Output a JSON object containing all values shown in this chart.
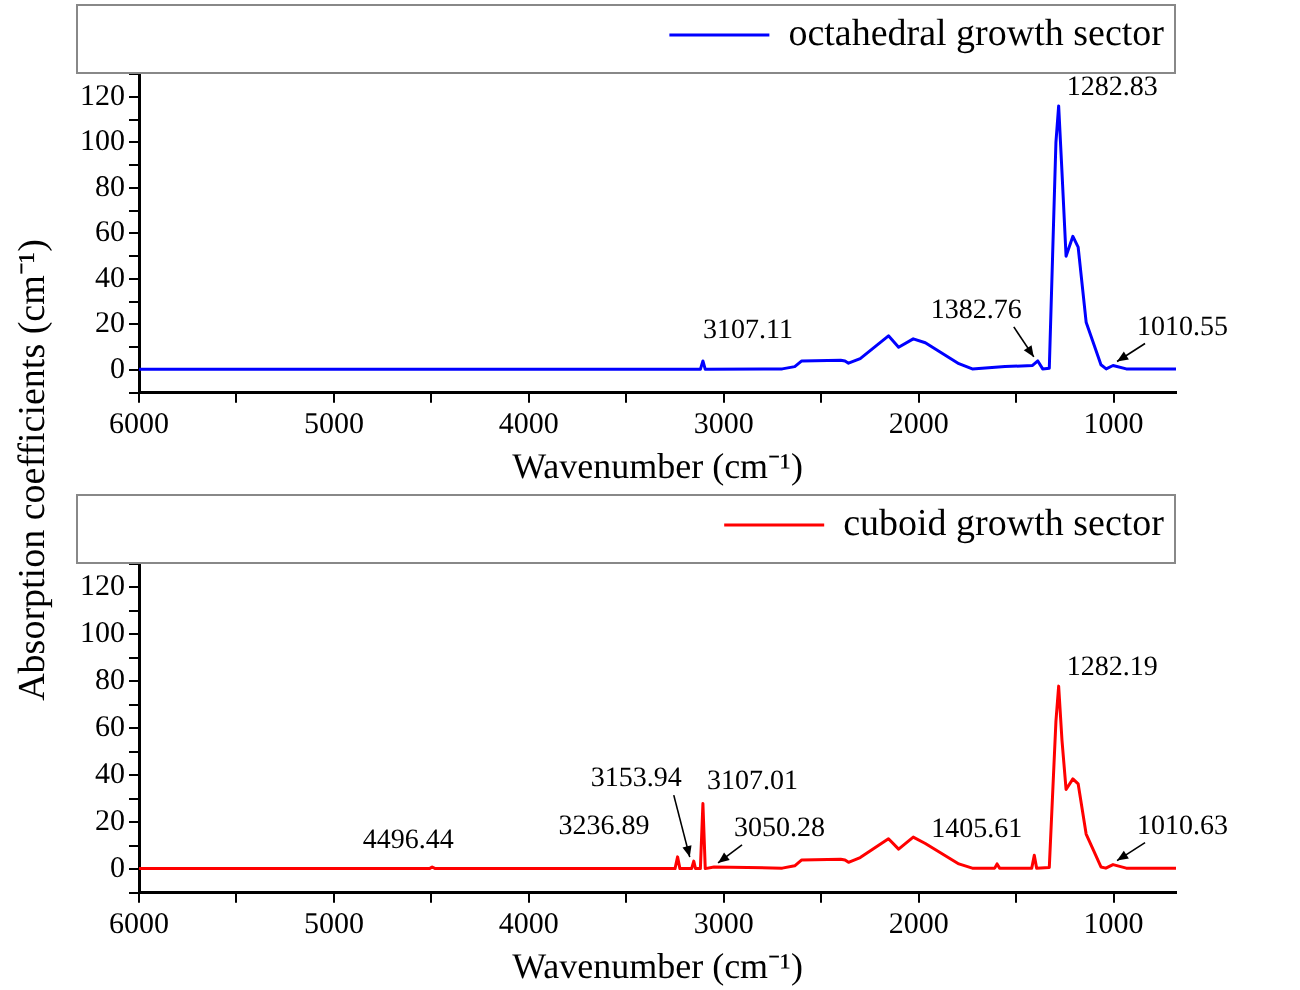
{
  "chart_data": [
    {
      "type": "line",
      "xlabel": "Wavenumber (cm⁻¹)",
      "ylabel": "Absorption coefficients (cm⁻¹)",
      "legend": "top right",
      "grid": false,
      "marker": "none",
      "line_style": "solid",
      "xlim": [
        6000,
        680
      ],
      "ylim": [
        -10,
        130
      ],
      "xticks": [
        6000,
        {
          "value": 5500,
          "label": null
        },
        5000,
        {
          "value": 4500,
          "label": null
        },
        4000,
        {
          "value": 3500,
          "label": null
        },
        3000,
        {
          "value": 2500,
          "label": null
        },
        2000,
        {
          "value": 1500,
          "label": null
        },
        1000
      ],
      "yticks": [
        {
          "value": -10,
          "label": null
        },
        0,
        {
          "value": 10,
          "label": null
        },
        20,
        {
          "value": 30,
          "label": null
        },
        40,
        {
          "value": 50,
          "label": null
        },
        60,
        {
          "value": 70,
          "label": null
        },
        80,
        {
          "value": 90,
          "label": null
        },
        100,
        {
          "value": 110,
          "label": null
        },
        120,
        {
          "value": 130,
          "label": null
        }
      ],
      "series": [
        {
          "name": "octahedral growth sector",
          "color": "#0000ff",
          "x": [
            6000,
            4500,
            3500,
            3120,
            3107,
            3095,
            2700,
            2636,
            2600,
            2400,
            2378,
            2360,
            2300,
            2155,
            2103,
            2028,
            1966,
            1794,
            1725,
            1557,
            1416,
            1389,
            1364,
            1330,
            1296,
            1282,
            1265,
            1244,
            1209,
            1182,
            1141,
            1106,
            1065,
            1038,
            1003,
            935,
            680
          ],
          "values": [
            0.3,
            0.3,
            0.3,
            0.3,
            4,
            0.3,
            0.5,
            1.5,
            4,
            4.3,
            4,
            3,
            5,
            15,
            10,
            13.7,
            12,
            2.8,
            0.5,
            1.5,
            2,
            4,
            0.5,
            0.8,
            100,
            116,
            87,
            50,
            58.7,
            54,
            21,
            12.4,
            2.3,
            0.5,
            2,
            0.5,
            0.5
          ]
        }
      ],
      "annotations": [
        {
          "text": "3107.11",
          "x": 3107,
          "y": 4
        },
        {
          "text": "1382.76",
          "x": 1389,
          "y": 4
        },
        {
          "text": "1282.83",
          "x": 1282,
          "y": 116
        },
        {
          "text": "1010.55",
          "x": 1003,
          "y": 2
        }
      ]
    },
    {
      "type": "line",
      "xlabel": "Wavenumber (cm⁻¹)",
      "legend": "top right",
      "grid": false,
      "marker": "none",
      "line_style": "solid",
      "xlim": [
        6000,
        680
      ],
      "ylim": [
        -10,
        130
      ],
      "xticks": [
        6000,
        {
          "value": 5500,
          "label": null
        },
        5000,
        {
          "value": 4500,
          "label": null
        },
        4000,
        {
          "value": 3500,
          "label": null
        },
        3000,
        {
          "value": 2500,
          "label": null
        },
        2000,
        {
          "value": 1500,
          "label": null
        },
        1000
      ],
      "yticks": [
        {
          "value": -10,
          "label": null
        },
        0,
        {
          "value": 10,
          "label": null
        },
        20,
        {
          "value": 30,
          "label": null
        },
        40,
        {
          "value": 50,
          "label": null
        },
        60,
        {
          "value": 70,
          "label": null
        },
        80,
        {
          "value": 90,
          "label": null
        },
        100,
        {
          "value": 110,
          "label": null
        },
        120,
        {
          "value": 130,
          "label": null
        }
      ],
      "series": [
        {
          "name": "cuboid growth sector",
          "color": "#ff0000",
          "x": [
            6000,
            4510,
            4496,
            4480,
            3500,
            3250,
            3237,
            3225,
            3165,
            3154,
            3145,
            3120,
            3107,
            3095,
            3050,
            2700,
            2636,
            2600,
            2400,
            2378,
            2360,
            2300,
            2155,
            2103,
            2028,
            1966,
            1794,
            1725,
            1610,
            1598,
            1585,
            1420,
            1407,
            1395,
            1330,
            1296,
            1282,
            1265,
            1244,
            1209,
            1182,
            1141,
            1106,
            1065,
            1040,
            1003,
            935,
            680
          ],
          "values": [
            0.3,
            0.3,
            1,
            0.3,
            0.3,
            0.3,
            5.3,
            0.3,
            0.3,
            3.5,
            0.3,
            0.3,
            28,
            0.3,
            1,
            0.5,
            1.5,
            4,
            4.3,
            4,
            3,
            5,
            13,
            8.6,
            13.7,
            11,
            2.3,
            0.5,
            0.5,
            2.3,
            0.5,
            0.5,
            6,
            0.5,
            0.8,
            63,
            78,
            55,
            34,
            38.5,
            36.4,
            15,
            8.6,
            1,
            0.5,
            2,
            0.5,
            0.5
          ]
        }
      ],
      "annotations": [
        {
          "text": "4496.44",
          "x": 4496,
          "y": 1
        },
        {
          "text": "3236.89",
          "x": 3237,
          "y": 5.3
        },
        {
          "text": "3153.94",
          "x": 3154,
          "y": 3.5
        },
        {
          "text": "3107.01",
          "x": 3107,
          "y": 28
        },
        {
          "text": "3050.28",
          "x": 3050,
          "y": 1
        },
        {
          "text": "1405.61",
          "x": 1407,
          "y": 6
        },
        {
          "text": "1282.19",
          "x": 1282,
          "y": 78
        },
        {
          "text": "1010.63",
          "x": 1003,
          "y": 2
        }
      ]
    }
  ]
}
